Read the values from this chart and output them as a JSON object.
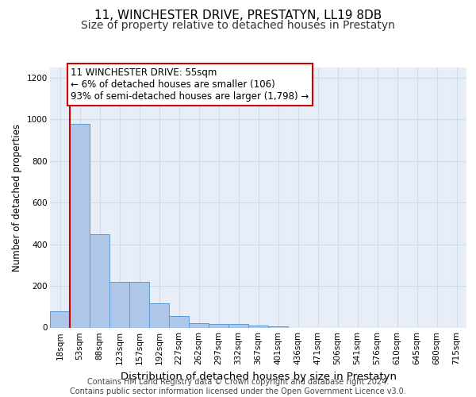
{
  "title": "11, WINCHESTER DRIVE, PRESTATYN, LL19 8DB",
  "subtitle": "Size of property relative to detached houses in Prestatyn",
  "xlabel": "Distribution of detached houses by size in Prestatyn",
  "ylabel": "Number of detached properties",
  "categories": [
    "18sqm",
    "53sqm",
    "88sqm",
    "123sqm",
    "157sqm",
    "192sqm",
    "227sqm",
    "262sqm",
    "297sqm",
    "332sqm",
    "367sqm",
    "401sqm",
    "436sqm",
    "471sqm",
    "506sqm",
    "541sqm",
    "576sqm",
    "610sqm",
    "645sqm",
    "680sqm",
    "715sqm"
  ],
  "values": [
    80,
    980,
    450,
    218,
    218,
    115,
    55,
    20,
    18,
    18,
    10,
    5,
    0,
    0,
    0,
    0,
    0,
    0,
    0,
    0,
    0
  ],
  "bar_color": "#aec6e8",
  "bar_edge_color": "#5b9bd5",
  "annotation_text": "11 WINCHESTER DRIVE: 55sqm\n← 6% of detached houses are smaller (106)\n93% of semi-detached houses are larger (1,798) →",
  "annotation_box_color": "#ffffff",
  "annotation_box_edge_color": "#cc0000",
  "vline_color": "#cc0000",
  "ylim": [
    0,
    1250
  ],
  "yticks": [
    0,
    200,
    400,
    600,
    800,
    1000,
    1200
  ],
  "grid_color": "#d0dcea",
  "background_color": "#e8eef8",
  "footer": "Contains HM Land Registry data © Crown copyright and database right 2024.\nContains public sector information licensed under the Open Government Licence v3.0.",
  "title_fontsize": 11,
  "subtitle_fontsize": 10,
  "xlabel_fontsize": 9.5,
  "ylabel_fontsize": 8.5,
  "tick_fontsize": 7.5,
  "annotation_fontsize": 8.5,
  "footer_fontsize": 7
}
